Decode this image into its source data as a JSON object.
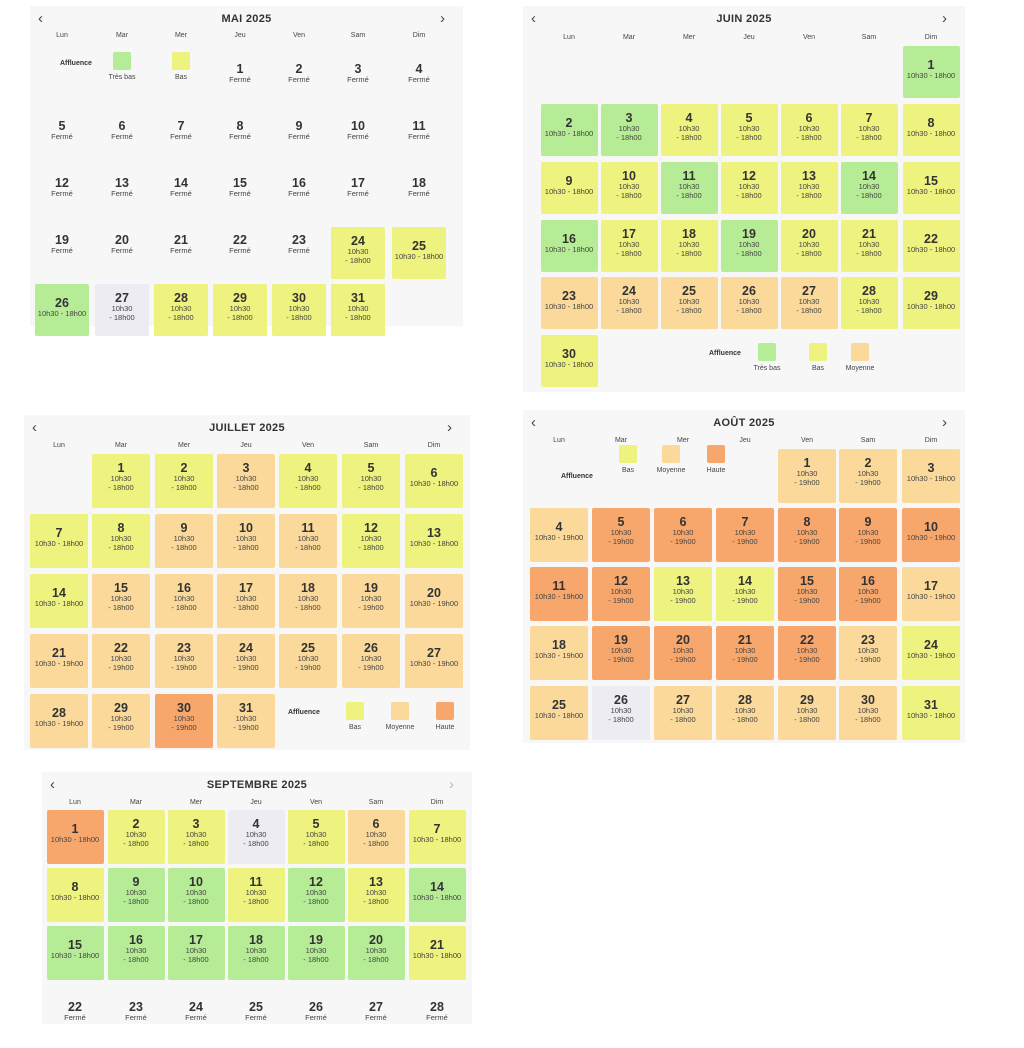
{
  "weekdays": [
    "Lun",
    "Mar",
    "Mer",
    "Jeu",
    "Ven",
    "Sam",
    "Dim"
  ],
  "nav": {
    "prev": "‹",
    "next": "›"
  },
  "colors": {
    "tres_bas": "#b6ec95",
    "bas": "#eef27e",
    "moyenne": "#fad99b",
    "haute": "#f8a76c",
    "grise": "#ececf2"
  },
  "legend_title": "Affluence",
  "months": [
    {
      "title": "MAI 2025",
      "next_disabled": false,
      "legend": [
        {
          "label": "Très bas",
          "level": "tres_bas"
        },
        {
          "label": "Bas",
          "level": "bas"
        }
      ],
      "days": [
        {
          "d": "1",
          "s": "Fermé"
        },
        {
          "d": "2",
          "s": "Fermé"
        },
        {
          "d": "3",
          "s": "Fermé"
        },
        {
          "d": "4",
          "s": "Fermé"
        },
        {
          "d": "5",
          "s": "Fermé"
        },
        {
          "d": "6",
          "s": "Fermé"
        },
        {
          "d": "7",
          "s": "Fermé"
        },
        {
          "d": "8",
          "s": "Fermé"
        },
        {
          "d": "9",
          "s": "Fermé"
        },
        {
          "d": "10",
          "s": "Fermé"
        },
        {
          "d": "11",
          "s": "Fermé"
        },
        {
          "d": "12",
          "s": "Fermé"
        },
        {
          "d": "13",
          "s": "Fermé"
        },
        {
          "d": "14",
          "s": "Fermé"
        },
        {
          "d": "15",
          "s": "Fermé"
        },
        {
          "d": "16",
          "s": "Fermé"
        },
        {
          "d": "17",
          "s": "Fermé"
        },
        {
          "d": "18",
          "s": "Fermé"
        },
        {
          "d": "19",
          "s": "Fermé"
        },
        {
          "d": "20",
          "s": "Fermé"
        },
        {
          "d": "21",
          "s": "Fermé"
        },
        {
          "d": "22",
          "s": "Fermé"
        },
        {
          "d": "23",
          "s": "Fermé"
        },
        {
          "d": "24",
          "s": "10h30\n- 18h00",
          "level": "bas"
        },
        {
          "d": "25",
          "s": "10h30 - 18h00",
          "level": "bas"
        },
        {
          "d": "26",
          "s": "10h30 - 18h00",
          "level": "tres_bas"
        },
        {
          "d": "27",
          "s": "10h30\n- 18h00",
          "level": "grise"
        },
        {
          "d": "28",
          "s": "10h30\n- 18h00",
          "level": "bas"
        },
        {
          "d": "29",
          "s": "10h30\n- 18h00",
          "level": "bas"
        },
        {
          "d": "30",
          "s": "10h30\n- 18h00",
          "level": "bas"
        },
        {
          "d": "31",
          "s": "10h30\n- 18h00",
          "level": "bas"
        }
      ]
    },
    {
      "title": "JUIN 2025",
      "next_disabled": false,
      "legend": [
        {
          "label": "Très bas",
          "level": "tres_bas"
        },
        {
          "label": "Bas",
          "level": "bas"
        },
        {
          "label": "Moyenne",
          "level": "moyenne"
        }
      ],
      "days": [
        {
          "d": "1",
          "s": "10h30 - 18h00",
          "level": "tres_bas"
        },
        {
          "d": "2",
          "s": "10h30 - 18h00",
          "level": "tres_bas"
        },
        {
          "d": "3",
          "s": "10h30\n- 18h00",
          "level": "tres_bas"
        },
        {
          "d": "4",
          "s": "10h30\n- 18h00",
          "level": "bas"
        },
        {
          "d": "5",
          "s": "10h30\n- 18h00",
          "level": "bas"
        },
        {
          "d": "6",
          "s": "10h30\n- 18h00",
          "level": "bas"
        },
        {
          "d": "7",
          "s": "10h30\n- 18h00",
          "level": "bas"
        },
        {
          "d": "8",
          "s": "10h30 - 18h00",
          "level": "bas"
        },
        {
          "d": "9",
          "s": "10h30 - 18h00",
          "level": "bas"
        },
        {
          "d": "10",
          "s": "10h30\n- 18h00",
          "level": "bas"
        },
        {
          "d": "11",
          "s": "10h30\n- 18h00",
          "level": "tres_bas"
        },
        {
          "d": "12",
          "s": "10h30\n- 18h00",
          "level": "bas"
        },
        {
          "d": "13",
          "s": "10h30\n- 18h00",
          "level": "bas"
        },
        {
          "d": "14",
          "s": "10h30\n- 18h00",
          "level": "tres_bas"
        },
        {
          "d": "15",
          "s": "10h30 - 18h00",
          "level": "bas"
        },
        {
          "d": "16",
          "s": "10h30 - 18h00",
          "level": "tres_bas"
        },
        {
          "d": "17",
          "s": "10h30\n- 18h00",
          "level": "bas"
        },
        {
          "d": "18",
          "s": "10h30\n- 18h00",
          "level": "bas"
        },
        {
          "d": "19",
          "s": "10h30\n- 18h00",
          "level": "tres_bas"
        },
        {
          "d": "20",
          "s": "10h30\n- 18h00",
          "level": "bas"
        },
        {
          "d": "21",
          "s": "10h30\n- 18h00",
          "level": "bas"
        },
        {
          "d": "22",
          "s": "10h30 - 18h00",
          "level": "bas"
        },
        {
          "d": "23",
          "s": "10h30 - 18h00",
          "level": "moyenne"
        },
        {
          "d": "24",
          "s": "10h30\n- 18h00",
          "level": "moyenne"
        },
        {
          "d": "25",
          "s": "10h30\n- 18h00",
          "level": "moyenne"
        },
        {
          "d": "26",
          "s": "10h30\n- 18h00",
          "level": "moyenne"
        },
        {
          "d": "27",
          "s": "10h30\n- 18h00",
          "level": "moyenne"
        },
        {
          "d": "28",
          "s": "10h30\n- 18h00",
          "level": "bas"
        },
        {
          "d": "29",
          "s": "10h30 - 18h00",
          "level": "bas"
        },
        {
          "d": "30",
          "s": "10h30 - 18h00",
          "level": "bas"
        }
      ]
    },
    {
      "title": "JUILLET 2025",
      "next_disabled": false,
      "legend": [
        {
          "label": "Bas",
          "level": "bas"
        },
        {
          "label": "Moyenne",
          "level": "moyenne"
        },
        {
          "label": "Haute",
          "level": "haute"
        }
      ],
      "days": [
        {
          "d": "1",
          "s": "10h30\n- 18h00",
          "level": "bas"
        },
        {
          "d": "2",
          "s": "10h30\n- 18h00",
          "level": "bas"
        },
        {
          "d": "3",
          "s": "10h30\n- 18h00",
          "level": "moyenne"
        },
        {
          "d": "4",
          "s": "10h30\n- 18h00",
          "level": "bas"
        },
        {
          "d": "5",
          "s": "10h30\n- 18h00",
          "level": "bas"
        },
        {
          "d": "6",
          "s": "10h30 - 18h00",
          "level": "bas"
        },
        {
          "d": "7",
          "s": "10h30 - 18h00",
          "level": "bas"
        },
        {
          "d": "8",
          "s": "10h30\n- 18h00",
          "level": "bas"
        },
        {
          "d": "9",
          "s": "10h30\n- 18h00",
          "level": "moyenne"
        },
        {
          "d": "10",
          "s": "10h30\n- 18h00",
          "level": "moyenne"
        },
        {
          "d": "11",
          "s": "10h30\n- 18h00",
          "level": "moyenne"
        },
        {
          "d": "12",
          "s": "10h30\n- 18h00",
          "level": "bas"
        },
        {
          "d": "13",
          "s": "10h30 - 18h00",
          "level": "bas"
        },
        {
          "d": "14",
          "s": "10h30 - 18h00",
          "level": "bas"
        },
        {
          "d": "15",
          "s": "10h30\n- 18h00",
          "level": "moyenne"
        },
        {
          "d": "16",
          "s": "10h30\n- 18h00",
          "level": "moyenne"
        },
        {
          "d": "17",
          "s": "10h30\n- 18h00",
          "level": "moyenne"
        },
        {
          "d": "18",
          "s": "10h30\n- 18h00",
          "level": "moyenne"
        },
        {
          "d": "19",
          "s": "10h30\n- 19h00",
          "level": "moyenne"
        },
        {
          "d": "20",
          "s": "10h30 - 19h00",
          "level": "moyenne"
        },
        {
          "d": "21",
          "s": "10h30 - 19h00",
          "level": "moyenne"
        },
        {
          "d": "22",
          "s": "10h30\n- 19h00",
          "level": "moyenne"
        },
        {
          "d": "23",
          "s": "10h30\n- 19h00",
          "level": "moyenne"
        },
        {
          "d": "24",
          "s": "10h30\n- 19h00",
          "level": "moyenne"
        },
        {
          "d": "25",
          "s": "10h30\n- 19h00",
          "level": "moyenne"
        },
        {
          "d": "26",
          "s": "10h30\n- 19h00",
          "level": "moyenne"
        },
        {
          "d": "27",
          "s": "10h30 - 19h00",
          "level": "moyenne"
        },
        {
          "d": "28",
          "s": "10h30 - 19h00",
          "level": "moyenne"
        },
        {
          "d": "29",
          "s": "10h30\n- 19h00",
          "level": "moyenne"
        },
        {
          "d": "30",
          "s": "10h30\n- 19h00",
          "level": "haute"
        },
        {
          "d": "31",
          "s": "10h30\n- 19h00",
          "level": "moyenne"
        }
      ]
    },
    {
      "title": "AOÛT 2025",
      "next_disabled": false,
      "legend": [
        {
          "label": "Bas",
          "level": "bas"
        },
        {
          "label": "Moyenne",
          "level": "moyenne"
        },
        {
          "label": "Haute",
          "level": "haute"
        }
      ],
      "days": [
        {
          "d": "1",
          "s": "10h30\n- 19h00",
          "level": "moyenne"
        },
        {
          "d": "2",
          "s": "10h30\n- 19h00",
          "level": "moyenne"
        },
        {
          "d": "3",
          "s": "10h30 - 19h00",
          "level": "moyenne"
        },
        {
          "d": "4",
          "s": "10h30 - 19h00",
          "level": "moyenne"
        },
        {
          "d": "5",
          "s": "10h30\n- 19h00",
          "level": "haute"
        },
        {
          "d": "6",
          "s": "10h30\n- 19h00",
          "level": "haute"
        },
        {
          "d": "7",
          "s": "10h30\n- 19h00",
          "level": "haute"
        },
        {
          "d": "8",
          "s": "10h30\n- 19h00",
          "level": "haute"
        },
        {
          "d": "9",
          "s": "10h30\n- 19h00",
          "level": "haute"
        },
        {
          "d": "10",
          "s": "10h30 - 19h00",
          "level": "haute"
        },
        {
          "d": "11",
          "s": "10h30 - 19h00",
          "level": "haute"
        },
        {
          "d": "12",
          "s": "10h30\n- 19h00",
          "level": "haute"
        },
        {
          "d": "13",
          "s": "10h30\n- 19h00",
          "level": "bas"
        },
        {
          "d": "14",
          "s": "10h30\n- 19h00",
          "level": "bas"
        },
        {
          "d": "15",
          "s": "10h30\n- 19h00",
          "level": "haute"
        },
        {
          "d": "16",
          "s": "10h30\n- 19h00",
          "level": "haute"
        },
        {
          "d": "17",
          "s": "10h30 - 19h00",
          "level": "moyenne"
        },
        {
          "d": "18",
          "s": "10h30 - 19h00",
          "level": "moyenne"
        },
        {
          "d": "19",
          "s": "10h30\n- 19h00",
          "level": "haute"
        },
        {
          "d": "20",
          "s": "10h30\n- 19h00",
          "level": "haute"
        },
        {
          "d": "21",
          "s": "10h30\n- 19h00",
          "level": "haute"
        },
        {
          "d": "22",
          "s": "10h30\n- 19h00",
          "level": "haute"
        },
        {
          "d": "23",
          "s": "10h30\n- 19h00",
          "level": "moyenne"
        },
        {
          "d": "24",
          "s": "10h30 - 19h00",
          "level": "bas"
        },
        {
          "d": "25",
          "s": "10h30 - 18h00",
          "level": "moyenne"
        },
        {
          "d": "26",
          "s": "10h30\n- 18h00",
          "level": "grise"
        },
        {
          "d": "27",
          "s": "10h30\n- 18h00",
          "level": "moyenne"
        },
        {
          "d": "28",
          "s": "10h30\n- 18h00",
          "level": "moyenne"
        },
        {
          "d": "29",
          "s": "10h30\n- 18h00",
          "level": "moyenne"
        },
        {
          "d": "30",
          "s": "10h30\n- 18h00",
          "level": "moyenne"
        },
        {
          "d": "31",
          "s": "10h30 - 18h00",
          "level": "bas"
        }
      ]
    },
    {
      "title": "SEPTEMBRE 2025",
      "next_disabled": true,
      "legend": [],
      "days": [
        {
          "d": "1",
          "s": "10h30 - 18h00",
          "level": "haute"
        },
        {
          "d": "2",
          "s": "10h30\n- 18h00",
          "level": "bas"
        },
        {
          "d": "3",
          "s": "10h30\n- 18h00",
          "level": "bas"
        },
        {
          "d": "4",
          "s": "10h30\n- 18h00",
          "level": "grise"
        },
        {
          "d": "5",
          "s": "10h30\n- 18h00",
          "level": "bas"
        },
        {
          "d": "6",
          "s": "10h30\n- 18h00",
          "level": "moyenne"
        },
        {
          "d": "7",
          "s": "10h30 - 18h00",
          "level": "bas"
        },
        {
          "d": "8",
          "s": "10h30 - 18h00",
          "level": "bas"
        },
        {
          "d": "9",
          "s": "10h30\n- 18h00",
          "level": "tres_bas"
        },
        {
          "d": "10",
          "s": "10h30\n- 18h00",
          "level": "tres_bas"
        },
        {
          "d": "11",
          "s": "10h30\n- 18h00",
          "level": "bas"
        },
        {
          "d": "12",
          "s": "10h30\n- 18h00",
          "level": "tres_bas"
        },
        {
          "d": "13",
          "s": "10h30\n- 18h00",
          "level": "bas"
        },
        {
          "d": "14",
          "s": "10h30 - 18h00",
          "level": "tres_bas"
        },
        {
          "d": "15",
          "s": "10h30 - 18h00",
          "level": "tres_bas"
        },
        {
          "d": "16",
          "s": "10h30\n- 18h00",
          "level": "tres_bas"
        },
        {
          "d": "17",
          "s": "10h30\n- 18h00",
          "level": "tres_bas"
        },
        {
          "d": "18",
          "s": "10h30\n- 18h00",
          "level": "tres_bas"
        },
        {
          "d": "19",
          "s": "10h30\n- 18h00",
          "level": "tres_bas"
        },
        {
          "d": "20",
          "s": "10h30\n- 18h00",
          "level": "tres_bas"
        },
        {
          "d": "21",
          "s": "10h30 - 18h00",
          "level": "bas"
        },
        {
          "d": "22",
          "s": "Fermé"
        },
        {
          "d": "23",
          "s": "Fermé"
        },
        {
          "d": "24",
          "s": "Fermé"
        },
        {
          "d": "25",
          "s": "Fermé"
        },
        {
          "d": "26",
          "s": "Fermé"
        },
        {
          "d": "27",
          "s": "Fermé"
        },
        {
          "d": "28",
          "s": "Fermé"
        }
      ]
    }
  ]
}
